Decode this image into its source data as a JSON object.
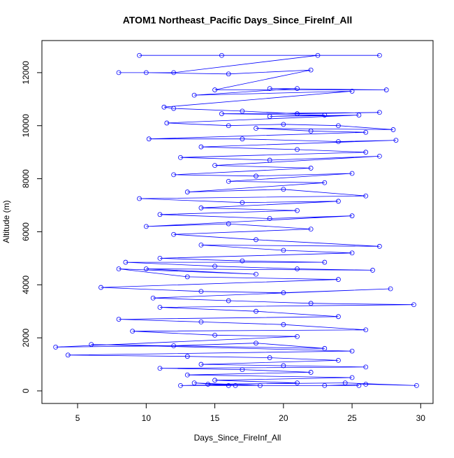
{
  "chart_data": {
    "type": "line",
    "title": "ATOM1 Northeast_Pacific Days_Since_FireInf_All",
    "x_label": "Days_Since_FireInf_All",
    "y_label": "Altitude (m)",
    "color": "#0000ff",
    "markers": true,
    "xlim": [
      2.4,
      30.9
    ],
    "ylim": [
      -475,
      13210
    ],
    "xticks": [
      5,
      10,
      15,
      20,
      25,
      30
    ],
    "yticks": [
      0,
      2000,
      4000,
      6000,
      8000,
      10000,
      12000
    ],
    "x": [
      27,
      9.5,
      15.5,
      22.5,
      12,
      8,
      10,
      16,
      22,
      15,
      27.5,
      19,
      21,
      13.5,
      25,
      11.3,
      12,
      17,
      21,
      27,
      15.5,
      23,
      19,
      25.5,
      11.5,
      16,
      20,
      24,
      28,
      18,
      22,
      26,
      10.2,
      17,
      24,
      28.2,
      14,
      21,
      26,
      12.5,
      19,
      27,
      15,
      22,
      12,
      18,
      25,
      16,
      23,
      13,
      20,
      26,
      9.5,
      17,
      24,
      14,
      21,
      11,
      19,
      25,
      10,
      16,
      22,
      12,
      18,
      27,
      14,
      20,
      25,
      11,
      17,
      23,
      8.5,
      15,
      21,
      26.5,
      10,
      18,
      8,
      13,
      24,
      6.7,
      14,
      20,
      27.8,
      10.5,
      16,
      22,
      29.5,
      11,
      18,
      24,
      8,
      14,
      20,
      26,
      9,
      15,
      21,
      3.4,
      12,
      18,
      23,
      6,
      25,
      4.3,
      13,
      19,
      24,
      14,
      20,
      26,
      11,
      17,
      22,
      13,
      25,
      15,
      21,
      12.5,
      18.3,
      13.5,
      16,
      23,
      26,
      29.7,
      24.5,
      14.5,
      16.5,
      25.5
    ],
    "values": [
      12650,
      12650,
      12650,
      12650,
      12000,
      12000,
      12000,
      11950,
      12100,
      11350,
      11350,
      11400,
      11400,
      11150,
      11300,
      10700,
      10650,
      10550,
      10450,
      10500,
      10450,
      10400,
      10350,
      10400,
      10100,
      10000,
      10050,
      10000,
      9850,
      9900,
      9800,
      9750,
      9500,
      9500,
      9400,
      9450,
      9200,
      9100,
      9000,
      8800,
      8700,
      8850,
      8500,
      8400,
      8150,
      8100,
      8200,
      7900,
      7850,
      7500,
      7600,
      7350,
      7250,
      7100,
      7150,
      6900,
      6800,
      6650,
      6500,
      6600,
      6200,
      6300,
      6100,
      5900,
      5700,
      5450,
      5500,
      5300,
      5200,
      5000,
      4900,
      4850,
      4850,
      4700,
      4600,
      4550,
      4600,
      4400,
      4600,
      4300,
      4200,
      3900,
      3750,
      3700,
      3850,
      3500,
      3400,
      3300,
      3250,
      3150,
      3000,
      2800,
      2700,
      2600,
      2500,
      2300,
      2250,
      2100,
      2050,
      1650,
      1700,
      1800,
      1600,
      1750,
      1500,
      1350,
      1300,
      1250,
      1150,
      1000,
      950,
      900,
      850,
      800,
      700,
      600,
      500,
      400,
      300,
      200,
      200,
      300,
      200,
      200,
      250,
      200,
      300,
      250,
      200,
      200
    ]
  }
}
